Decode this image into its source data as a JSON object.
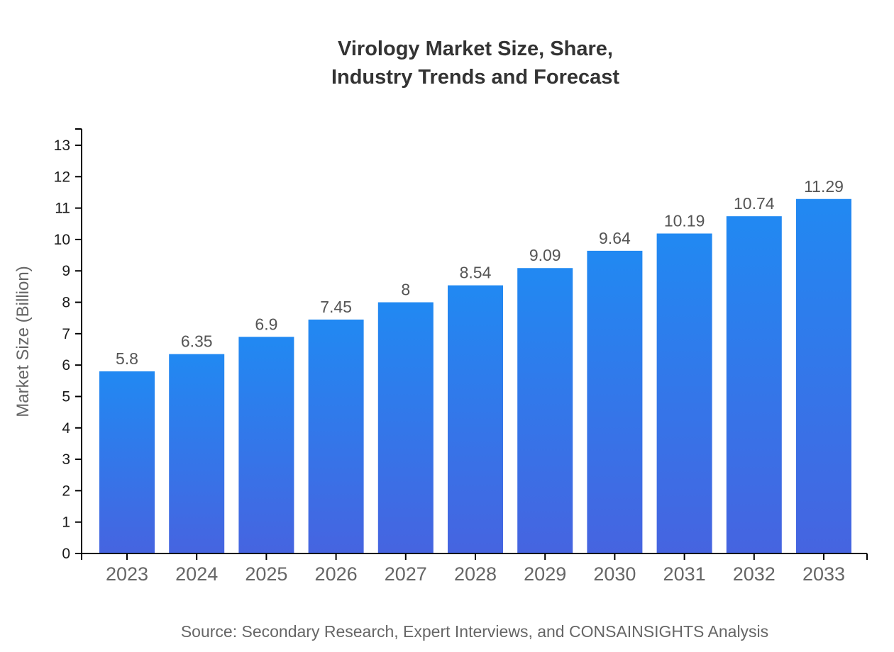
{
  "chart_data": {
    "type": "bar",
    "title": "Virology Market Size, Share, Industry Trends and Forecast",
    "title_lines": [
      "Virology Market Size, Share,",
      "Industry Trends and Forecast"
    ],
    "categories": [
      "2023",
      "2024",
      "2025",
      "2026",
      "2027",
      "2028",
      "2029",
      "2030",
      "2031",
      "2032",
      "2033"
    ],
    "values": [
      5.8,
      6.35,
      6.9,
      7.45,
      8,
      8.54,
      9.09,
      9.64,
      10.19,
      10.74,
      11.29
    ],
    "value_labels": [
      "5.8",
      "6.35",
      "6.9",
      "7.45",
      "8",
      "8.54",
      "9.09",
      "9.64",
      "10.19",
      "10.74",
      "11.29"
    ],
    "xlabel": "",
    "ylabel": "Market Size (Billion)",
    "ylim": [
      0,
      13
    ],
    "y_ticks": [
      0,
      1,
      2,
      3,
      4,
      5,
      6,
      7,
      8,
      9,
      10,
      11,
      12,
      13
    ],
    "grid": false,
    "legend": false,
    "colors": {
      "bar_gradient_top": "#2189F2",
      "bar_gradient_bottom": "#4664E0",
      "axis_line": "#000000",
      "title_text": "#333333",
      "y_tick_label": "#1a1a1a",
      "x_tick_label": "#666666",
      "value_label": "#555555",
      "axis_title": "#666666",
      "source_text": "#666666"
    }
  },
  "footer": {
    "source": "Source: Secondary Research, Expert Interviews, and CONSAINSIGHTS Analysis"
  }
}
